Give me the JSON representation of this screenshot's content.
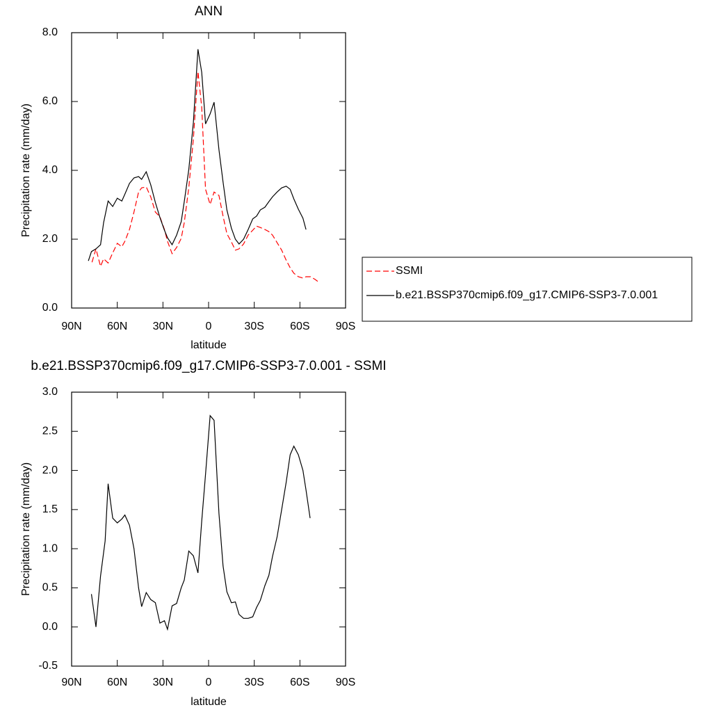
{
  "chart_data": [
    {
      "type": "line",
      "title": "ANN",
      "xlabel": "latitude",
      "ylabel": "Precipitation rate (mm/day)",
      "xlim": [
        90,
        -90
      ],
      "xticks": [
        {
          "value": 90,
          "label": "90N"
        },
        {
          "value": 60,
          "label": "60N"
        },
        {
          "value": 30,
          "label": "30N"
        },
        0,
        {
          "value": -30,
          "label": "30S"
        },
        {
          "value": -60,
          "label": "60S"
        },
        {
          "value": -90,
          "label": "90S"
        }
      ],
      "ylim": [
        0,
        8
      ],
      "yticks": [
        {
          "value": 0,
          "label": "0.0"
        },
        {
          "value": 2,
          "label": "2.0"
        },
        {
          "value": 4,
          "label": "4.0"
        },
        {
          "value": 6,
          "label": "6.0"
        },
        {
          "value": 8,
          "label": "8.0"
        }
      ],
      "legend": "right",
      "series": [
        {
          "name": "SSMI",
          "color": "#ff0000",
          "dash": true,
          "x": [
            76.6,
            74,
            71,
            69,
            66,
            63,
            60,
            57,
            55,
            52,
            49,
            46,
            44,
            41,
            38,
            35,
            32,
            29,
            27,
            24,
            21,
            18,
            16,
            13,
            10,
            7,
            4.5,
            2,
            -1,
            -3.6,
            -6.8,
            -9.5,
            -12,
            -15,
            -17.6,
            -20,
            -23,
            -26,
            -29,
            -31.5,
            -34,
            -37,
            -39.6,
            -42,
            -45,
            -48,
            -51,
            -53.6,
            -56,
            -59,
            -62,
            -64,
            -67,
            -70,
            -72.5
          ],
          "values": [
            1.33,
            1.72,
            1.21,
            1.43,
            1.31,
            1.6,
            1.88,
            1.78,
            1.94,
            2.28,
            2.79,
            3.37,
            3.49,
            3.52,
            3.23,
            2.79,
            2.65,
            2.28,
            1.94,
            1.58,
            1.76,
            2.02,
            2.48,
            3.49,
            4.91,
            6.87,
            5.84,
            3.45,
            3.01,
            3.37,
            3.27,
            2.67,
            2.16,
            1.92,
            1.68,
            1.72,
            1.86,
            2.12,
            2.26,
            2.38,
            2.34,
            2.28,
            2.22,
            2.12,
            1.9,
            1.68,
            1.39,
            1.17,
            1.01,
            0.91,
            0.87,
            0.91,
            0.91,
            0.83,
            0.75
          ]
        },
        {
          "name": "b.e21.BSSP370cmip6.f09_g17.CMIP6-SSP3-7.0.001",
          "color": "#000000",
          "dash": false,
          "x": [
            79,
            77,
            74,
            71,
            69,
            66,
            63,
            60,
            57,
            55,
            52,
            49,
            46,
            44,
            41,
            38,
            35,
            32,
            29,
            27,
            24,
            21,
            18,
            16,
            13,
            10,
            7,
            4.5,
            2,
            -1,
            -3.6,
            -6.8,
            -9.5,
            -12,
            -15,
            -17.6,
            -20,
            -23,
            -26,
            -29,
            -31.5,
            -34,
            -37,
            -39.6,
            -42,
            -45,
            -48,
            -51,
            -53.6,
            -56,
            -59,
            -62,
            -64
          ],
          "values": [
            1.37,
            1.64,
            1.72,
            1.84,
            2.48,
            3.11,
            2.95,
            3.19,
            3.11,
            3.31,
            3.62,
            3.78,
            3.82,
            3.74,
            3.96,
            3.58,
            3.07,
            2.63,
            2.26,
            2.04,
            1.84,
            2.12,
            2.51,
            3.09,
            4.02,
            5.39,
            7.52,
            6.85,
            5.35,
            5.64,
            5.98,
            4.6,
            3.66,
            2.85,
            2.32,
            2.0,
            1.86,
            2.0,
            2.28,
            2.59,
            2.67,
            2.85,
            2.93,
            3.09,
            3.23,
            3.37,
            3.49,
            3.54,
            3.45,
            3.17,
            2.87,
            2.61,
            2.28
          ]
        }
      ]
    },
    {
      "type": "line",
      "title": "b.e21.BSSP370cmip6.f09_g17.CMIP6-SSP3-7.0.001 - SSMI",
      "xlabel": "latitude",
      "ylabel": "Precipitation rate (mm/day)",
      "xlim": [
        90,
        -90
      ],
      "xticks": [
        {
          "value": 90,
          "label": "90N"
        },
        {
          "value": 60,
          "label": "60N"
        },
        {
          "value": 30,
          "label": "30N"
        },
        0,
        {
          "value": -30,
          "label": "30S"
        },
        {
          "value": -60,
          "label": "60S"
        },
        {
          "value": -90,
          "label": "90S"
        }
      ],
      "ylim": [
        -0.5,
        3
      ],
      "yticks": [
        -0.5,
        {
          "value": 0,
          "label": "0.0"
        },
        0.5,
        {
          "value": 1,
          "label": "1.0"
        },
        1.5,
        {
          "value": 2,
          "label": "2.0"
        },
        2.5,
        {
          "value": 3,
          "label": "3.0"
        }
      ],
      "series": [
        {
          "color": "#000000",
          "dash": false,
          "x": [
            77,
            74,
            71,
            68,
            66,
            63,
            60,
            57,
            55,
            52,
            49,
            46,
            44,
            41,
            38,
            35,
            32,
            29,
            27,
            24,
            21,
            18,
            16,
            13,
            10,
            7,
            4.5,
            2,
            -1,
            -3.6,
            -6.8,
            -9.5,
            -12,
            -15,
            -17.6,
            -20,
            -23,
            -26,
            -29,
            -31.5,
            -34,
            -37,
            -39.6,
            -42,
            -45,
            -48,
            -51,
            -53.6,
            -56,
            -59,
            -62,
            -64,
            -66.7
          ],
          "values": [
            0.42,
            0.0,
            0.65,
            1.1,
            1.83,
            1.39,
            1.33,
            1.38,
            1.43,
            1.3,
            1.0,
            0.5,
            0.26,
            0.44,
            0.35,
            0.31,
            0.05,
            0.08,
            -0.03,
            0.27,
            0.3,
            0.5,
            0.6,
            0.97,
            0.91,
            0.69,
            1.35,
            1.95,
            2.7,
            2.64,
            1.45,
            0.78,
            0.45,
            0.31,
            0.32,
            0.16,
            0.11,
            0.11,
            0.13,
            0.25,
            0.34,
            0.53,
            0.66,
            0.9,
            1.15,
            1.5,
            1.85,
            2.2,
            2.31,
            2.2,
            2.0,
            1.75,
            1.39
          ]
        }
      ]
    }
  ]
}
